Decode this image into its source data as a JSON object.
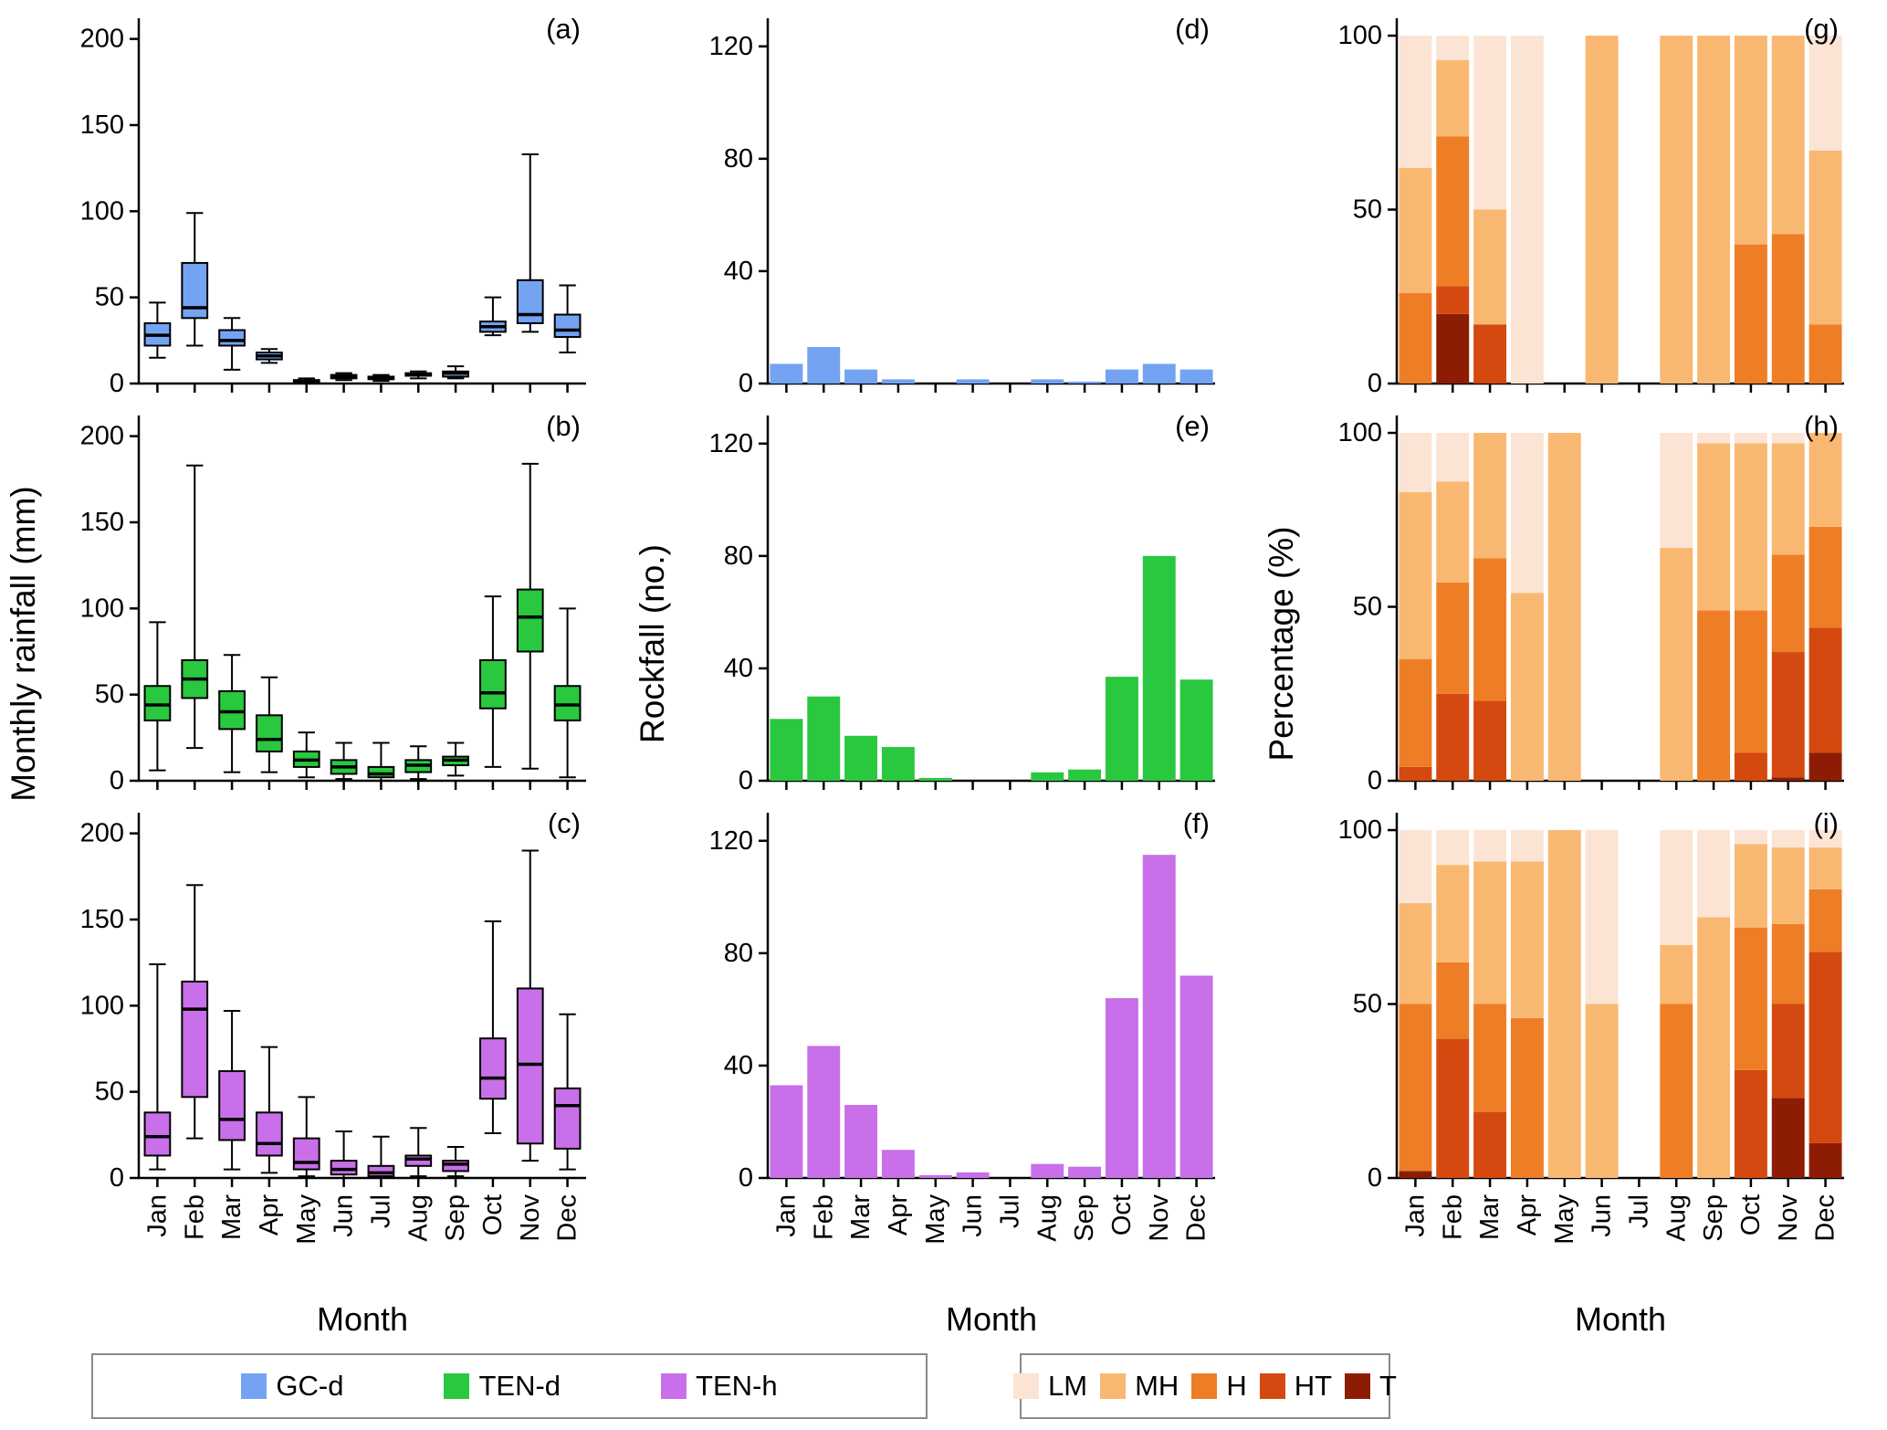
{
  "months": [
    "Jan",
    "Feb",
    "Mar",
    "Apr",
    "May",
    "Jun",
    "Jul",
    "Aug",
    "Sep",
    "Oct",
    "Nov",
    "Dec"
  ],
  "labels": {
    "ylabel_left": "Monthly rainfall (mm)",
    "ylabel_center": "Rockfall (no.)",
    "ylabel_right": "Percentage (%)",
    "xlabel": "Month"
  },
  "colors": {
    "GC-d": "#74A3F2",
    "TEN-d": "#29C83E",
    "TEN-h": "#C86FE9",
    "LM": "#FBE4D4",
    "MH": "#F9B872",
    "H": "#EE7E26",
    "HT": "#D4490F",
    "T": "#8C1D04"
  },
  "legend_series": {
    "items": [
      {
        "label": "GC-d",
        "color_key": "GC-d"
      },
      {
        "label": "TEN-d",
        "color_key": "TEN-d"
      },
      {
        "label": "TEN-h",
        "color_key": "TEN-h"
      }
    ]
  },
  "legend_categories": {
    "items": [
      {
        "label": "LM",
        "color_key": "LM"
      },
      {
        "label": "MH",
        "color_key": "MH"
      },
      {
        "label": "H",
        "color_key": "H"
      },
      {
        "label": "HT",
        "color_key": "HT"
      },
      {
        "label": "T",
        "color_key": "T"
      }
    ]
  },
  "chart_data": [
    {
      "panel": "(a)",
      "type": "boxplot",
      "name": "GC-d monthly rainfall",
      "series_key": "GC-d",
      "ylim": [
        0,
        212
      ],
      "yticks": [
        0,
        50,
        100,
        150,
        200
      ],
      "show_x_labels": false,
      "stats_order": [
        "whisker_low",
        "q1",
        "median",
        "q3",
        "whisker_high"
      ],
      "stats": [
        [
          15,
          22,
          28,
          35,
          47
        ],
        [
          22,
          38,
          44,
          70,
          99
        ],
        [
          8,
          22,
          25,
          31,
          38
        ],
        [
          12,
          14,
          16,
          18,
          20
        ],
        [
          0.5,
          1,
          1.5,
          2,
          3
        ],
        [
          2,
          3,
          4,
          5,
          6
        ],
        [
          1.5,
          2.5,
          3,
          4,
          5
        ],
        [
          3,
          4.5,
          5,
          6,
          7
        ],
        [
          3,
          4,
          6,
          7,
          10
        ],
        [
          28,
          30,
          33,
          36,
          50
        ],
        [
          30,
          35,
          40,
          60,
          133
        ],
        [
          18,
          27,
          31,
          40,
          57
        ]
      ]
    },
    {
      "panel": "(b)",
      "type": "boxplot",
      "name": "TEN-d monthly rainfall",
      "series_key": "TEN-d",
      "ylim": [
        0,
        212
      ],
      "yticks": [
        0,
        50,
        100,
        150,
        200
      ],
      "show_x_labels": false,
      "stats_order": [
        "whisker_low",
        "q1",
        "median",
        "q3",
        "whisker_high"
      ],
      "stats": [
        [
          6,
          35,
          44,
          55,
          92
        ],
        [
          19,
          48,
          59,
          70,
          183
        ],
        [
          5,
          30,
          40,
          52,
          73
        ],
        [
          5,
          17,
          24,
          38,
          60
        ],
        [
          2,
          8,
          12,
          17,
          28
        ],
        [
          1,
          4,
          8,
          12,
          22
        ],
        [
          0,
          2,
          4,
          8,
          22
        ],
        [
          1,
          5,
          9,
          12,
          20
        ],
        [
          3,
          9,
          12,
          14,
          22
        ],
        [
          8,
          42,
          51,
          70,
          107
        ],
        [
          7,
          75,
          95,
          111,
          184
        ],
        [
          2,
          35,
          44,
          55,
          100
        ]
      ]
    },
    {
      "panel": "(c)",
      "type": "boxplot",
      "name": "TEN-h monthly rainfall",
      "series_key": "TEN-h",
      "ylim": [
        0,
        212
      ],
      "yticks": [
        0,
        50,
        100,
        150,
        200
      ],
      "show_x_labels": true,
      "stats_order": [
        "whisker_low",
        "q1",
        "median",
        "q3",
        "whisker_high"
      ],
      "stats": [
        [
          5,
          13,
          24,
          38,
          124
        ],
        [
          23,
          47,
          98,
          114,
          170
        ],
        [
          5,
          22,
          34,
          62,
          97
        ],
        [
          3,
          13,
          20,
          38,
          76
        ],
        [
          1,
          5,
          9,
          23,
          47
        ],
        [
          0,
          2,
          5,
          10,
          27
        ],
        [
          0,
          1,
          3,
          7,
          24
        ],
        [
          1,
          7,
          11,
          13,
          29
        ],
        [
          1,
          4,
          8,
          10,
          18
        ],
        [
          26,
          46,
          58,
          81,
          149
        ],
        [
          10,
          20,
          66,
          110,
          190
        ],
        [
          5,
          17,
          42,
          52,
          95
        ]
      ]
    },
    {
      "panel": "(d)",
      "type": "bar",
      "name": "GC-d rockfall count",
      "series_key": "GC-d",
      "ylim": [
        0,
        130
      ],
      "yticks": [
        0,
        40,
        80,
        120
      ],
      "show_x_labels": false,
      "values": [
        7,
        13,
        5,
        1.5,
        0,
        1.5,
        0,
        1.5,
        0.7,
        5,
        7,
        5
      ]
    },
    {
      "panel": "(e)",
      "type": "bar",
      "name": "TEN-d rockfall count",
      "series_key": "TEN-d",
      "ylim": [
        0,
        130
      ],
      "yticks": [
        0,
        40,
        80,
        120
      ],
      "show_x_labels": false,
      "values": [
        22,
        30,
        16,
        12,
        1,
        0,
        0,
        3,
        4,
        37,
        80,
        36
      ]
    },
    {
      "panel": "(f)",
      "type": "bar",
      "name": "TEN-h rockfall count",
      "series_key": "TEN-h",
      "ylim": [
        0,
        130
      ],
      "yticks": [
        0,
        40,
        80,
        120
      ],
      "show_x_labels": true,
      "values": [
        33,
        47,
        26,
        10,
        1,
        2,
        0,
        5,
        4,
        64,
        115,
        72
      ]
    },
    {
      "panel": "(g)",
      "type": "stacked_bar",
      "name": "GC-d rainfall intensity percentage",
      "series_key": "GC-d",
      "ylim": [
        0,
        105
      ],
      "yticks": [
        0,
        50,
        100
      ],
      "show_x_labels": false,
      "stack_order": [
        "T",
        "HT",
        "H",
        "MH",
        "LM"
      ],
      "series": {
        "T": [
          0,
          20,
          0,
          0,
          0,
          0,
          0,
          0,
          0,
          0,
          0,
          0
        ],
        "HT": [
          0,
          8,
          17,
          0,
          0,
          0,
          0,
          0,
          0,
          0,
          0,
          0
        ],
        "H": [
          26,
          43,
          0,
          0,
          0,
          0,
          0,
          0,
          0,
          40,
          43,
          17
        ],
        "MH": [
          36,
          22,
          33,
          0,
          0,
          100,
          0,
          100,
          100,
          60,
          57,
          50
        ],
        "LM": [
          38,
          7,
          50,
          100,
          0,
          0,
          0,
          0,
          0,
          0,
          0,
          33
        ]
      }
    },
    {
      "panel": "(h)",
      "type": "stacked_bar",
      "name": "TEN-d rainfall intensity percentage",
      "series_key": "TEN-d",
      "ylim": [
        0,
        105
      ],
      "yticks": [
        0,
        50,
        100
      ],
      "show_x_labels": false,
      "stack_order": [
        "T",
        "HT",
        "H",
        "MH",
        "LM"
      ],
      "series": {
        "T": [
          0,
          0,
          0,
          0,
          0,
          0,
          0,
          0,
          0,
          0,
          1,
          8
        ],
        "HT": [
          4,
          25,
          23,
          0,
          0,
          0,
          0,
          0,
          0,
          8,
          36,
          36
        ],
        "H": [
          31,
          32,
          41,
          0,
          0,
          0,
          0,
          0,
          49,
          41,
          28,
          29
        ],
        "MH": [
          48,
          29,
          36,
          54,
          100,
          0,
          0,
          67,
          48,
          48,
          32,
          27
        ],
        "LM": [
          17,
          14,
          0,
          46,
          0,
          0,
          0,
          33,
          3,
          3,
          3,
          0
        ]
      }
    },
    {
      "panel": "(i)",
      "type": "stacked_bar",
      "name": "TEN-h rainfall intensity percentage",
      "series_key": "TEN-h",
      "ylim": [
        0,
        105
      ],
      "yticks": [
        0,
        50,
        100
      ],
      "show_x_labels": true,
      "stack_order": [
        "T",
        "HT",
        "H",
        "MH",
        "LM"
      ],
      "series": {
        "T": [
          2,
          0,
          0,
          0,
          0,
          0,
          0,
          0,
          0,
          0,
          23,
          10
        ],
        "HT": [
          0,
          40,
          19,
          0,
          0,
          0,
          0,
          0,
          0,
          31,
          27,
          55
        ],
        "H": [
          48,
          22,
          31,
          46,
          0,
          0,
          0,
          50,
          0,
          41,
          23,
          18
        ],
        "MH": [
          29,
          28,
          41,
          45,
          100,
          50,
          0,
          17,
          75,
          24,
          22,
          12
        ],
        "LM": [
          21,
          10,
          9,
          9,
          0,
          50,
          0,
          33,
          25,
          4,
          5,
          5
        ]
      }
    }
  ]
}
